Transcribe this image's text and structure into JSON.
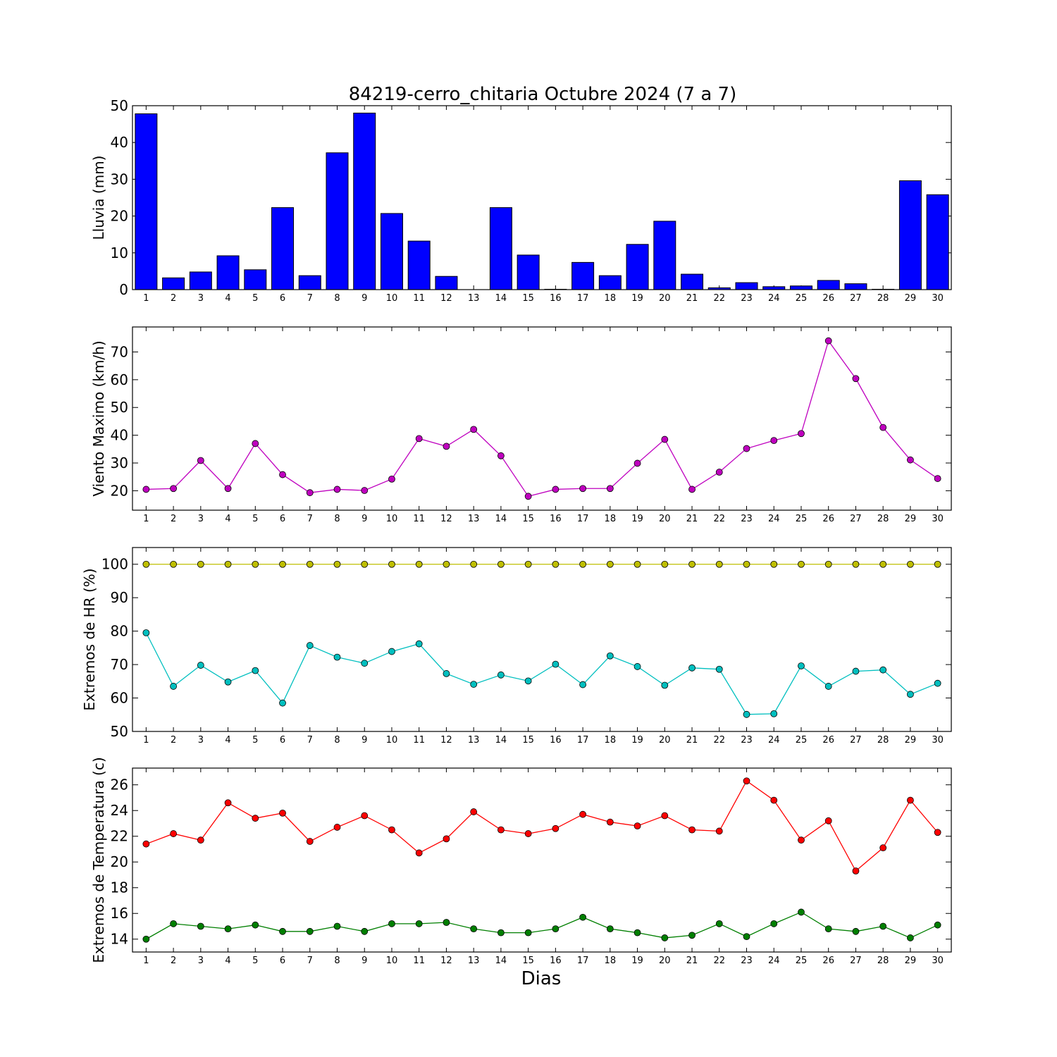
{
  "figure": {
    "title": "84219-cerro_chitaria Octubre 2024  (7 a 7)",
    "xlabel": "Dias"
  },
  "chart_data": [
    {
      "type": "bar",
      "id": "rain",
      "ylabel": "Lluvia (mm)",
      "categories": [
        1,
        2,
        3,
        4,
        5,
        6,
        7,
        8,
        9,
        10,
        11,
        12,
        13,
        14,
        15,
        16,
        17,
        18,
        19,
        20,
        21,
        22,
        23,
        24,
        25,
        26,
        27,
        28,
        29,
        30
      ],
      "ylim": [
        0,
        50
      ],
      "yticks": [
        0,
        10,
        20,
        30,
        40,
        50
      ],
      "color": "#0000ff",
      "series": [
        {
          "values": [
            47.8,
            3.2,
            4.8,
            9.2,
            5.4,
            22.3,
            3.8,
            37.2,
            48.0,
            20.7,
            13.2,
            3.6,
            0.0,
            22.3,
            9.4,
            0.1,
            7.4,
            3.8,
            12.3,
            18.6,
            4.2,
            0.5,
            1.9,
            0.8,
            1.0,
            2.5,
            1.6,
            0.1,
            29.6,
            25.8
          ]
        }
      ]
    },
    {
      "type": "line",
      "id": "wind",
      "ylabel": "Viento Maximo (km/h)",
      "x": [
        1,
        2,
        3,
        4,
        5,
        6,
        7,
        8,
        9,
        10,
        11,
        12,
        13,
        14,
        15,
        16,
        17,
        18,
        19,
        20,
        21,
        22,
        23,
        24,
        25,
        26,
        27,
        28,
        29,
        30
      ],
      "ylim": [
        13,
        79
      ],
      "yticks": [
        20,
        30,
        40,
        50,
        60,
        70
      ],
      "series": [
        {
          "color": "#bf00bf",
          "values": [
            20.5,
            20.8,
            30.9,
            20.8,
            37.0,
            25.8,
            19.3,
            20.5,
            20.1,
            24.2,
            38.8,
            36.0,
            42.1,
            32.6,
            18.0,
            20.5,
            20.8,
            20.8,
            29.9,
            38.5,
            20.5,
            26.7,
            35.2,
            38.1,
            40.6,
            74.0,
            60.4,
            42.8,
            31.1,
            24.4
          ]
        }
      ]
    },
    {
      "type": "line",
      "id": "humidity",
      "ylabel": "Extremos de HR (%)",
      "x": [
        1,
        2,
        3,
        4,
        5,
        6,
        7,
        8,
        9,
        10,
        11,
        12,
        13,
        14,
        15,
        16,
        17,
        18,
        19,
        20,
        21,
        22,
        23,
        24,
        25,
        26,
        27,
        28,
        29,
        30
      ],
      "ylim": [
        50,
        105
      ],
      "yticks": [
        50,
        60,
        70,
        80,
        90,
        100
      ],
      "series": [
        {
          "color": "#bfbf00",
          "values": [
            100,
            100,
            100,
            100,
            100,
            100,
            100,
            100,
            100,
            100,
            100,
            100,
            100,
            100,
            100,
            100,
            100,
            100,
            100,
            100,
            100,
            100,
            100,
            100,
            100,
            100,
            100,
            100,
            100,
            100
          ]
        },
        {
          "color": "#00bfbf",
          "values": [
            79.5,
            63.5,
            69.8,
            64.8,
            68.2,
            58.5,
            75.7,
            72.2,
            70.4,
            73.9,
            76.2,
            67.3,
            64.1,
            66.9,
            65.1,
            70.1,
            64.0,
            72.6,
            69.4,
            63.8,
            69.0,
            68.6,
            55.1,
            55.3,
            69.6,
            63.5,
            68.0,
            68.4,
            61.1,
            64.4
          ]
        }
      ]
    },
    {
      "type": "line",
      "id": "temperature",
      "ylabel": "Extremos de Temperatura (c)",
      "x": [
        1,
        2,
        3,
        4,
        5,
        6,
        7,
        8,
        9,
        10,
        11,
        12,
        13,
        14,
        15,
        16,
        17,
        18,
        19,
        20,
        21,
        22,
        23,
        24,
        25,
        26,
        27,
        28,
        29,
        30
      ],
      "ylim": [
        13,
        27.3
      ],
      "yticks": [
        14,
        16,
        18,
        20,
        22,
        24,
        26
      ],
      "series": [
        {
          "color": "#ff0000",
          "values": [
            21.4,
            22.2,
            21.7,
            24.6,
            23.4,
            23.8,
            21.6,
            22.7,
            23.6,
            22.5,
            20.7,
            21.8,
            23.9,
            22.5,
            22.2,
            22.6,
            23.7,
            23.1,
            22.8,
            23.6,
            22.5,
            22.4,
            26.3,
            24.8,
            21.7,
            23.2,
            19.3,
            21.1,
            24.8,
            22.3
          ]
        },
        {
          "color": "#007f00",
          "values": [
            14.0,
            15.2,
            15.0,
            14.8,
            15.1,
            14.6,
            14.6,
            15.0,
            14.6,
            15.2,
            15.2,
            15.3,
            14.8,
            14.5,
            14.5,
            14.8,
            15.7,
            14.8,
            14.5,
            14.1,
            14.3,
            15.2,
            14.2,
            15.2,
            16.1,
            14.8,
            14.6,
            15.0,
            14.1,
            15.1
          ]
        }
      ]
    }
  ]
}
